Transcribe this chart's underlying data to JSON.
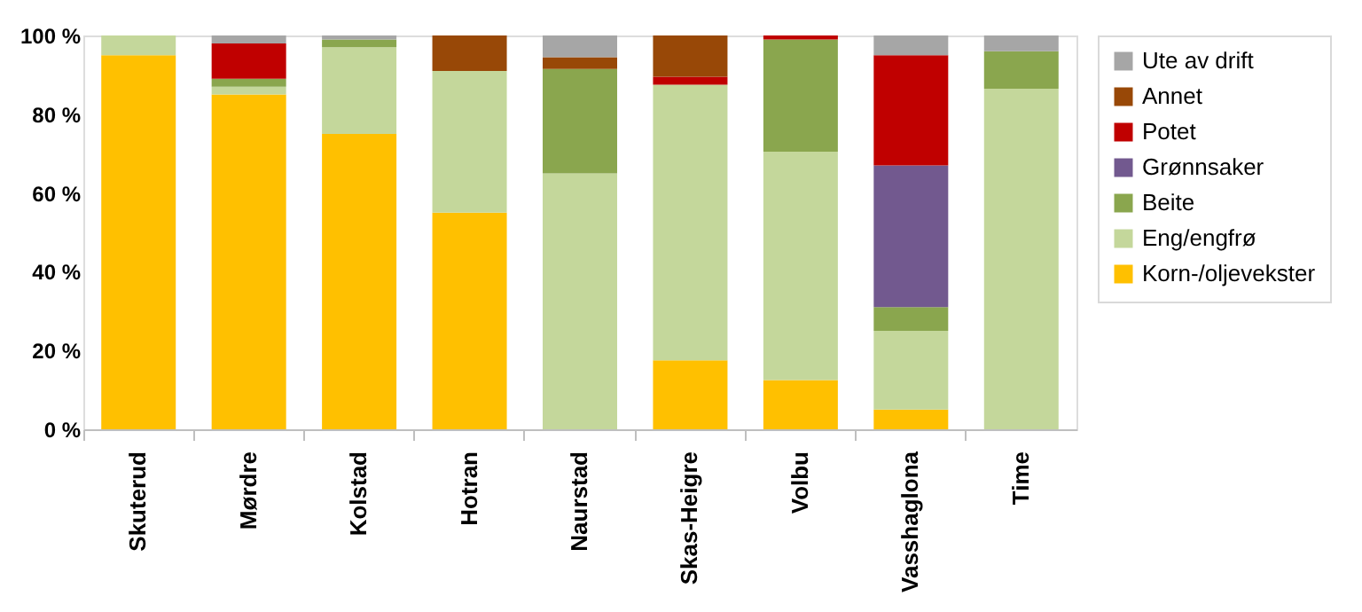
{
  "chart_data": {
    "type": "bar",
    "stacked": true,
    "categories": [
      "Skuterud",
      "Mørdre",
      "Kolstad",
      "Hotran",
      "Naurstad",
      "Skas-Heigre",
      "Volbu",
      "Vasshaglona",
      "Time"
    ],
    "series": [
      {
        "name": "Korn-/oljevekster",
        "color": "#ffc000",
        "values": [
          95,
          85,
          75,
          55,
          0,
          17.5,
          12.5,
          5,
          0
        ]
      },
      {
        "name": "Eng/engfrø",
        "color": "#c4d79b",
        "values": [
          5,
          2,
          22,
          36,
          65,
          70,
          58,
          20,
          86.5
        ]
      },
      {
        "name": "Beite",
        "color": "#8aa64e",
        "values": [
          0,
          2,
          2,
          0,
          26.5,
          0,
          28.5,
          6,
          9.5
        ]
      },
      {
        "name": "Grønnsaker",
        "color": "#72598f",
        "values": [
          0,
          0,
          0,
          0,
          0,
          0,
          0,
          36,
          0
        ]
      },
      {
        "name": "Potet",
        "color": "#c00000",
        "values": [
          0,
          9,
          0,
          0,
          0,
          2,
          1,
          28,
          0
        ]
      },
      {
        "name": "Annet",
        "color": "#984807",
        "values": [
          0,
          0,
          0,
          9,
          3,
          10.5,
          0,
          0,
          0
        ]
      },
      {
        "name": "Ute av drift",
        "color": "#a6a6a6",
        "values": [
          0,
          2,
          1,
          0,
          5.5,
          0,
          0,
          5,
          4
        ]
      }
    ],
    "ylim": [
      0,
      100
    ],
    "yticks": [
      {
        "value": 0,
        "label": "0 %"
      },
      {
        "value": 20,
        "label": "20 %"
      },
      {
        "value": 40,
        "label": "40 %"
      },
      {
        "value": 60,
        "label": "60 %"
      },
      {
        "value": 80,
        "label": "80 %"
      },
      {
        "value": 100,
        "label": "100 %"
      }
    ],
    "grid": false,
    "legend": "right"
  }
}
